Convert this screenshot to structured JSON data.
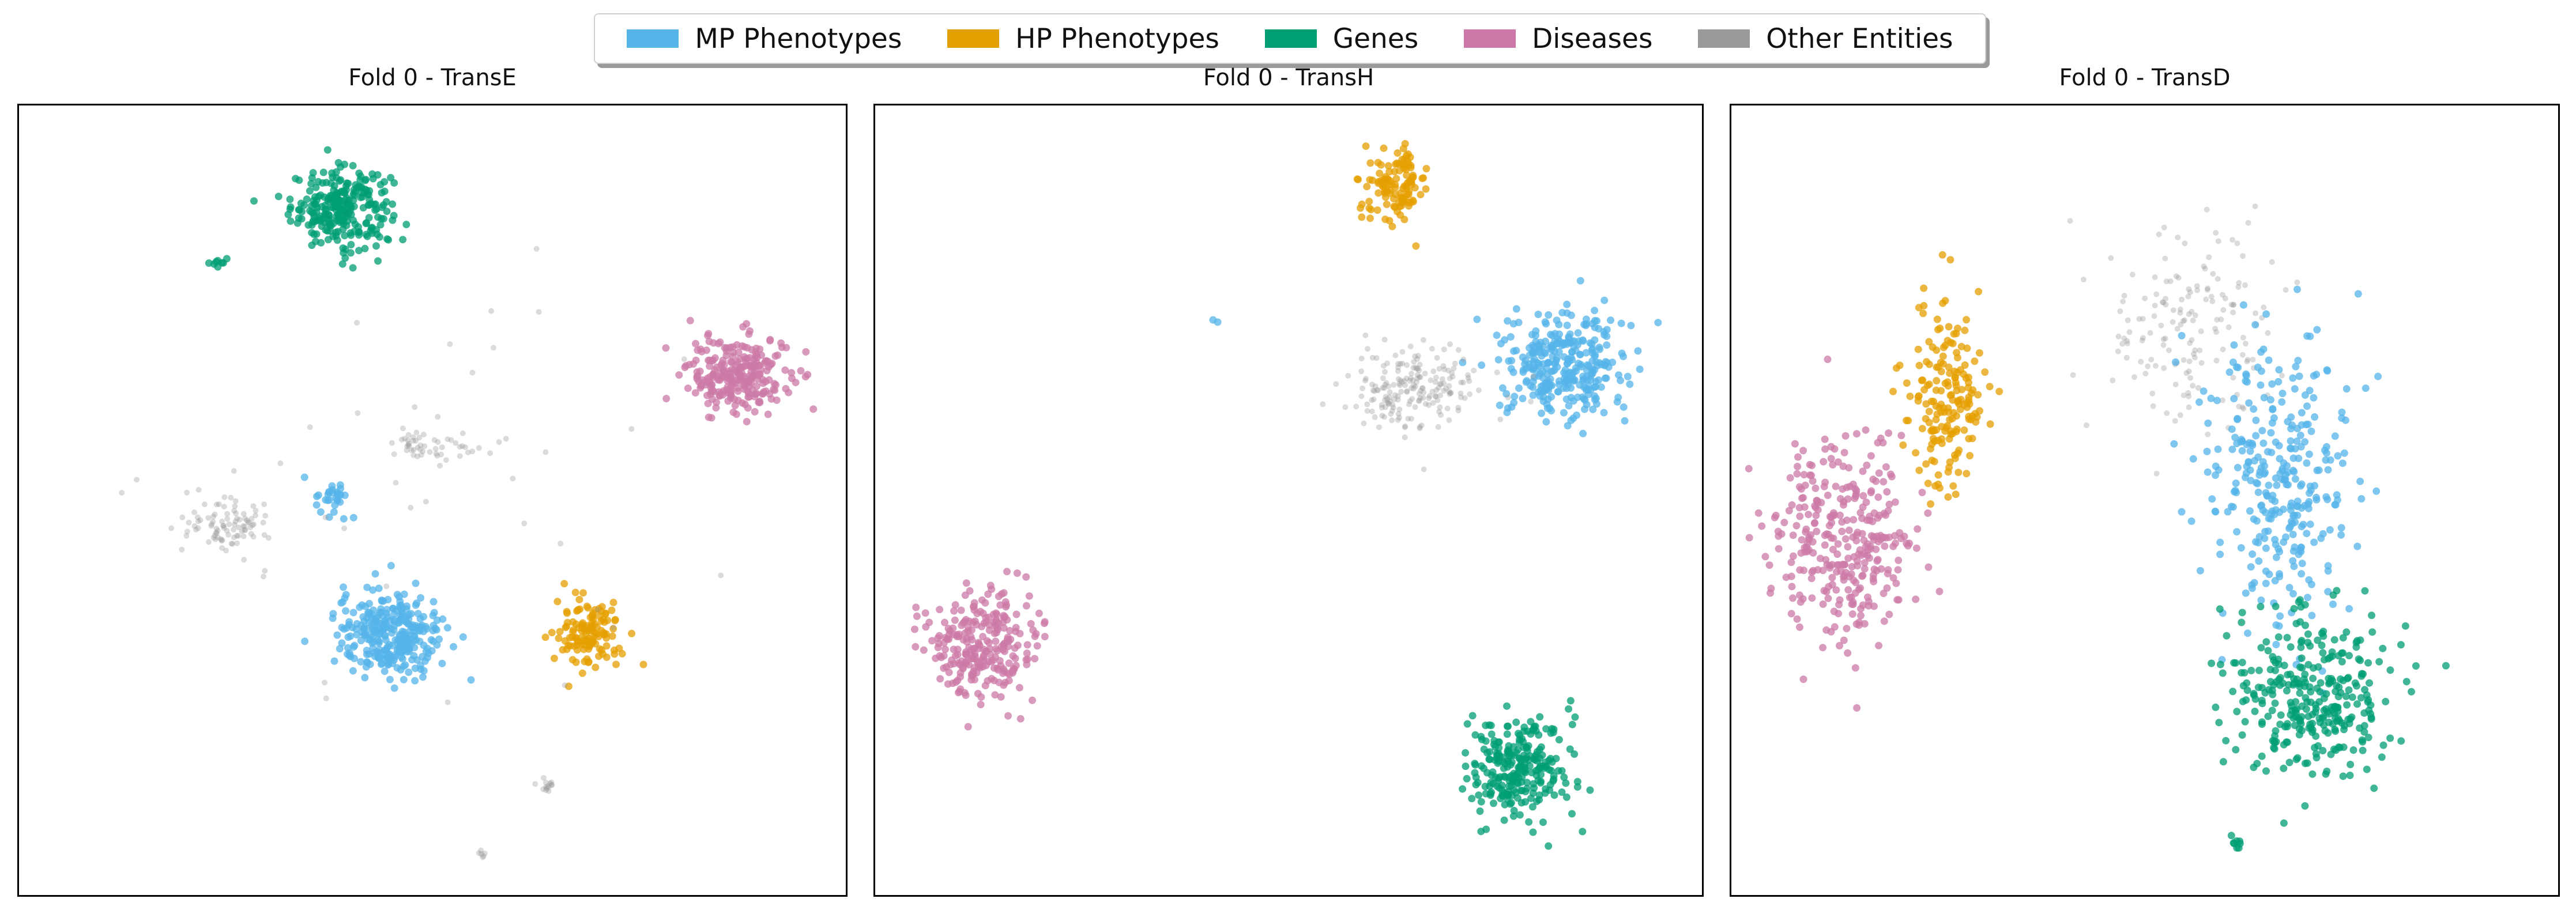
{
  "legend": {
    "items": [
      {
        "label": "MP Phenotypes",
        "color": "#56b4e9"
      },
      {
        "label": "HP Phenotypes",
        "color": "#e69f00"
      },
      {
        "label": "Genes",
        "color": "#009e73"
      },
      {
        "label": "Diseases",
        "color": "#cc79a7"
      },
      {
        "label": "Other Entities",
        "color": "#999999"
      }
    ]
  },
  "chart_data": [
    {
      "type": "scatter",
      "title": "Fold 0 - TransE",
      "xlabel": "",
      "ylabel": "",
      "xlim": [
        0,
        100
      ],
      "ylim": [
        0,
        100
      ],
      "grid": false,
      "legend_position": "top-center",
      "clusters": [
        {
          "series": "Genes",
          "center": [
            39,
            87
          ],
          "spread": [
            5.5,
            4.5
          ],
          "n": 260
        },
        {
          "series": "Genes",
          "center": [
            24,
            80
          ],
          "spread": [
            1.2,
            0.5
          ],
          "n": 8
        },
        {
          "series": "Diseases",
          "center": [
            87,
            66
          ],
          "spread": [
            5.5,
            4.5
          ],
          "n": 260
        },
        {
          "series": "MP Phenotypes",
          "center": [
            45,
            33
          ],
          "spread": [
            6,
            5
          ],
          "n": 300
        },
        {
          "series": "MP Phenotypes",
          "center": [
            38,
            50
          ],
          "spread": [
            2,
            2
          ],
          "n": 30
        },
        {
          "series": "HP Phenotypes",
          "center": [
            69,
            33
          ],
          "spread": [
            3.5,
            4
          ],
          "n": 130
        },
        {
          "series": "Other Entities",
          "center": [
            25,
            47
          ],
          "spread": [
            5,
            3
          ],
          "n": 90
        },
        {
          "series": "Other Entities",
          "center": [
            50,
            57
          ],
          "spread": [
            6,
            2
          ],
          "n": 50
        },
        {
          "series": "Other Entities",
          "center": [
            64,
            14
          ],
          "spread": [
            1.5,
            1
          ],
          "n": 14
        },
        {
          "series": "Other Entities",
          "center": [
            56,
            5
          ],
          "spread": [
            0.5,
            0.6
          ],
          "n": 6
        },
        {
          "series": "Other Entities",
          "center": [
            50,
            55
          ],
          "spread": [
            30,
            25
          ],
          "n": 40
        }
      ]
    },
    {
      "type": "scatter",
      "title": "Fold 0 - TransH",
      "xlabel": "",
      "ylabel": "",
      "xlim": [
        0,
        100
      ],
      "ylim": [
        0,
        100
      ],
      "grid": false,
      "legend_position": "top-center",
      "clusters": [
        {
          "series": "HP Phenotypes",
          "center": [
            63,
            90
          ],
          "spread": [
            3.5,
            4
          ],
          "n": 120
        },
        {
          "series": "MP Phenotypes",
          "center": [
            83,
            67
          ],
          "spread": [
            7,
            6
          ],
          "n": 320
        },
        {
          "series": "Other Entities",
          "center": [
            65,
            64
          ],
          "spread": [
            7,
            5
          ],
          "n": 200
        },
        {
          "series": "Diseases",
          "center": [
            13,
            32
          ],
          "spread": [
            6,
            6
          ],
          "n": 260
        },
        {
          "series": "Genes",
          "center": [
            78,
            16
          ],
          "spread": [
            5.5,
            6
          ],
          "n": 260
        },
        {
          "series": "MP Phenotypes",
          "center": [
            41,
            73
          ],
          "spread": [
            0.5,
            0.5
          ],
          "n": 2
        }
      ]
    },
    {
      "type": "scatter",
      "title": "Fold 0 - TransD",
      "xlabel": "",
      "ylabel": "",
      "xlim": [
        0,
        100
      ],
      "ylim": [
        0,
        100
      ],
      "grid": false,
      "legend_position": "top-center",
      "clusters": [
        {
          "series": "Diseases",
          "center": [
            14,
            45
          ],
          "spread": [
            8,
            12
          ],
          "n": 320
        },
        {
          "series": "HP Phenotypes",
          "center": [
            26,
            63
          ],
          "spread": [
            4,
            10
          ],
          "n": 180
        },
        {
          "series": "Other Entities",
          "center": [
            55,
            72
          ],
          "spread": [
            10,
            12
          ],
          "n": 160
        },
        {
          "series": "MP Phenotypes",
          "center": [
            66,
            52
          ],
          "spread": [
            8,
            16
          ],
          "n": 320
        },
        {
          "series": "Genes",
          "center": [
            70,
            25
          ],
          "spread": [
            9,
            10
          ],
          "n": 320
        },
        {
          "series": "Genes",
          "center": [
            61,
            7
          ],
          "spread": [
            0.8,
            1
          ],
          "n": 8
        }
      ]
    }
  ]
}
